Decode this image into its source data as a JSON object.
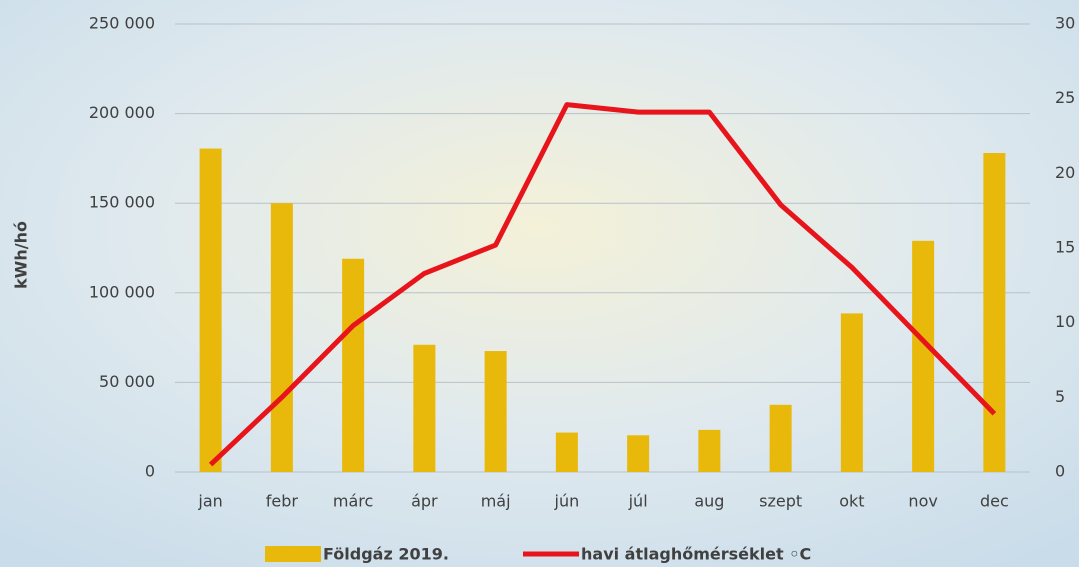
{
  "chart_data": {
    "type": "bar-line",
    "y_label": "kWh/hó",
    "categories": [
      "jan",
      "febr",
      "márc",
      "ápr",
      "máj",
      "jún",
      "júl",
      "aug",
      "szept",
      "okt",
      "nov",
      "dec"
    ],
    "series": [
      {
        "name": "Földgáz 2019.",
        "color": "#e8b90a",
        "type": "bar",
        "values": [
          180500,
          150000,
          119000,
          71000,
          67500,
          22000,
          20500,
          23500,
          37500,
          88500,
          129000,
          178000
        ]
      },
      {
        "name": "havi átlaghőmérséklet ◦C",
        "color": "#e8141b",
        "type": "line",
        "axis": "y2",
        "values": [
          0.5,
          5,
          9.8,
          13.3,
          15.2,
          24.6,
          24.1,
          24.1,
          17.9,
          13.7,
          8.8,
          3.9
        ]
      }
    ],
    "ylim": [
      0,
      250000
    ],
    "yticks": [
      {
        "value": 0,
        "label": "0"
      },
      {
        "value": 50000,
        "label": "50 000"
      },
      {
        "value": 100000,
        "label": "100 000"
      },
      {
        "value": 150000,
        "label": "150 000"
      },
      {
        "value": 200000,
        "label": "200 000"
      },
      {
        "value": 250000,
        "label": "250 000"
      }
    ],
    "y2lim": [
      0,
      30
    ],
    "y2ticks": [
      0,
      5,
      10,
      15,
      20,
      25,
      30
    ],
    "grid": true
  }
}
